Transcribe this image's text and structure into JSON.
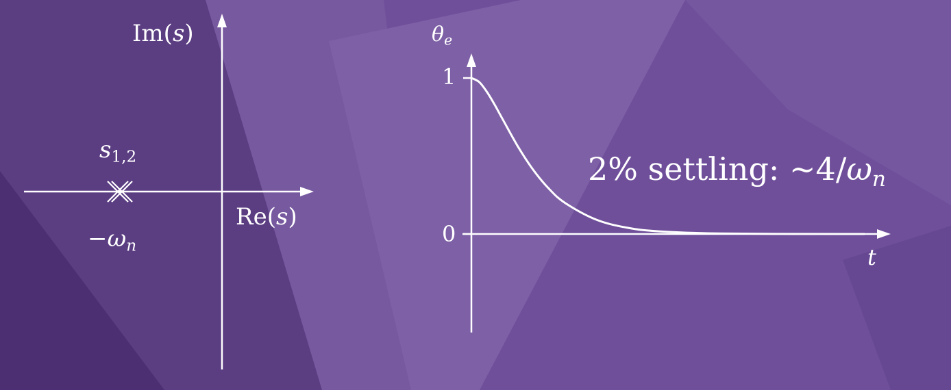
{
  "background": {
    "base_color": "#6f4f9a",
    "dark_color": "#4a2a6e",
    "light_color": "#8a6cb2"
  },
  "s_plane": {
    "imag_axis_label": {
      "name": "Im",
      "arg": "s"
    },
    "real_axis_label": {
      "name": "Re",
      "arg": "s"
    },
    "pole_label": {
      "base": "s",
      "subscript": "1,2"
    },
    "pole_location_label": {
      "prefix": "−",
      "symbol": "ω",
      "subscript": "n"
    }
  },
  "response_plot": {
    "y_axis_label": {
      "symbol": "θ",
      "subscript": "e"
    },
    "x_axis_label": "t",
    "y_tick_top": "1",
    "y_tick_bottom": "0",
    "annotation": {
      "text": "2% settling: ~4/",
      "symbol": "ω",
      "subscript": "n"
    },
    "chart_data": {
      "type": "line",
      "title": "",
      "xlabel": "t",
      "ylabel": "θe",
      "series": [
        {
          "name": "θe(t)",
          "x": [
            0,
            0.25,
            0.5,
            0.75,
            1.0,
            1.5,
            2.0,
            2.5,
            3.0,
            4.0,
            5.0,
            6.0,
            8.0,
            12.0
          ],
          "values": [
            1.0,
            0.974,
            0.91,
            0.827,
            0.736,
            0.558,
            0.406,
            0.287,
            0.199,
            0.092,
            0.04,
            0.017,
            0.003,
            0.0
          ]
        }
      ],
      "xlim": [
        0,
        12.6
      ],
      "ylim": [
        0,
        1
      ],
      "grid": false
    }
  }
}
